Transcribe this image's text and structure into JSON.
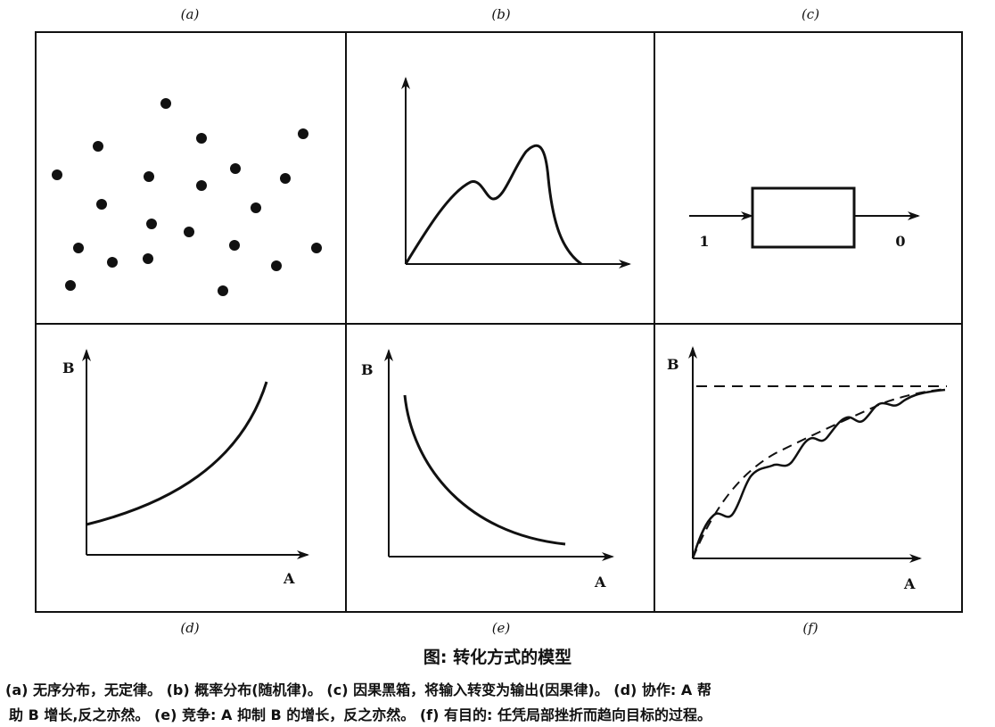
{
  "panels": {
    "a": {
      "label": "(a)"
    },
    "b": {
      "label": "(b)"
    },
    "c": {
      "label": "(c)",
      "input": "1",
      "output": "0"
    },
    "d": {
      "label": "(d)",
      "x_axis": "A",
      "y_axis": "B"
    },
    "e": {
      "label": "(e)",
      "x_axis": "A",
      "y_axis": "B"
    },
    "f": {
      "label": "(f)",
      "x_axis": "A",
      "y_axis": "B"
    }
  },
  "figure": {
    "title": "图: 转化方式的模型",
    "caption_line1": "(a) 无序分布，无定律。 (b) 概率分布(随机律)。 (c) 因果黑箱，将输入转变为输出(因果律)。 (d) 协作: A 帮",
    "caption_line2": "助 B 增长,反之亦然。 (e) 竞争: A 抑制 B 的增长，反之亦然。 (f) 有目的: 任凭局部挫折而趋向目标的过程。"
  }
}
